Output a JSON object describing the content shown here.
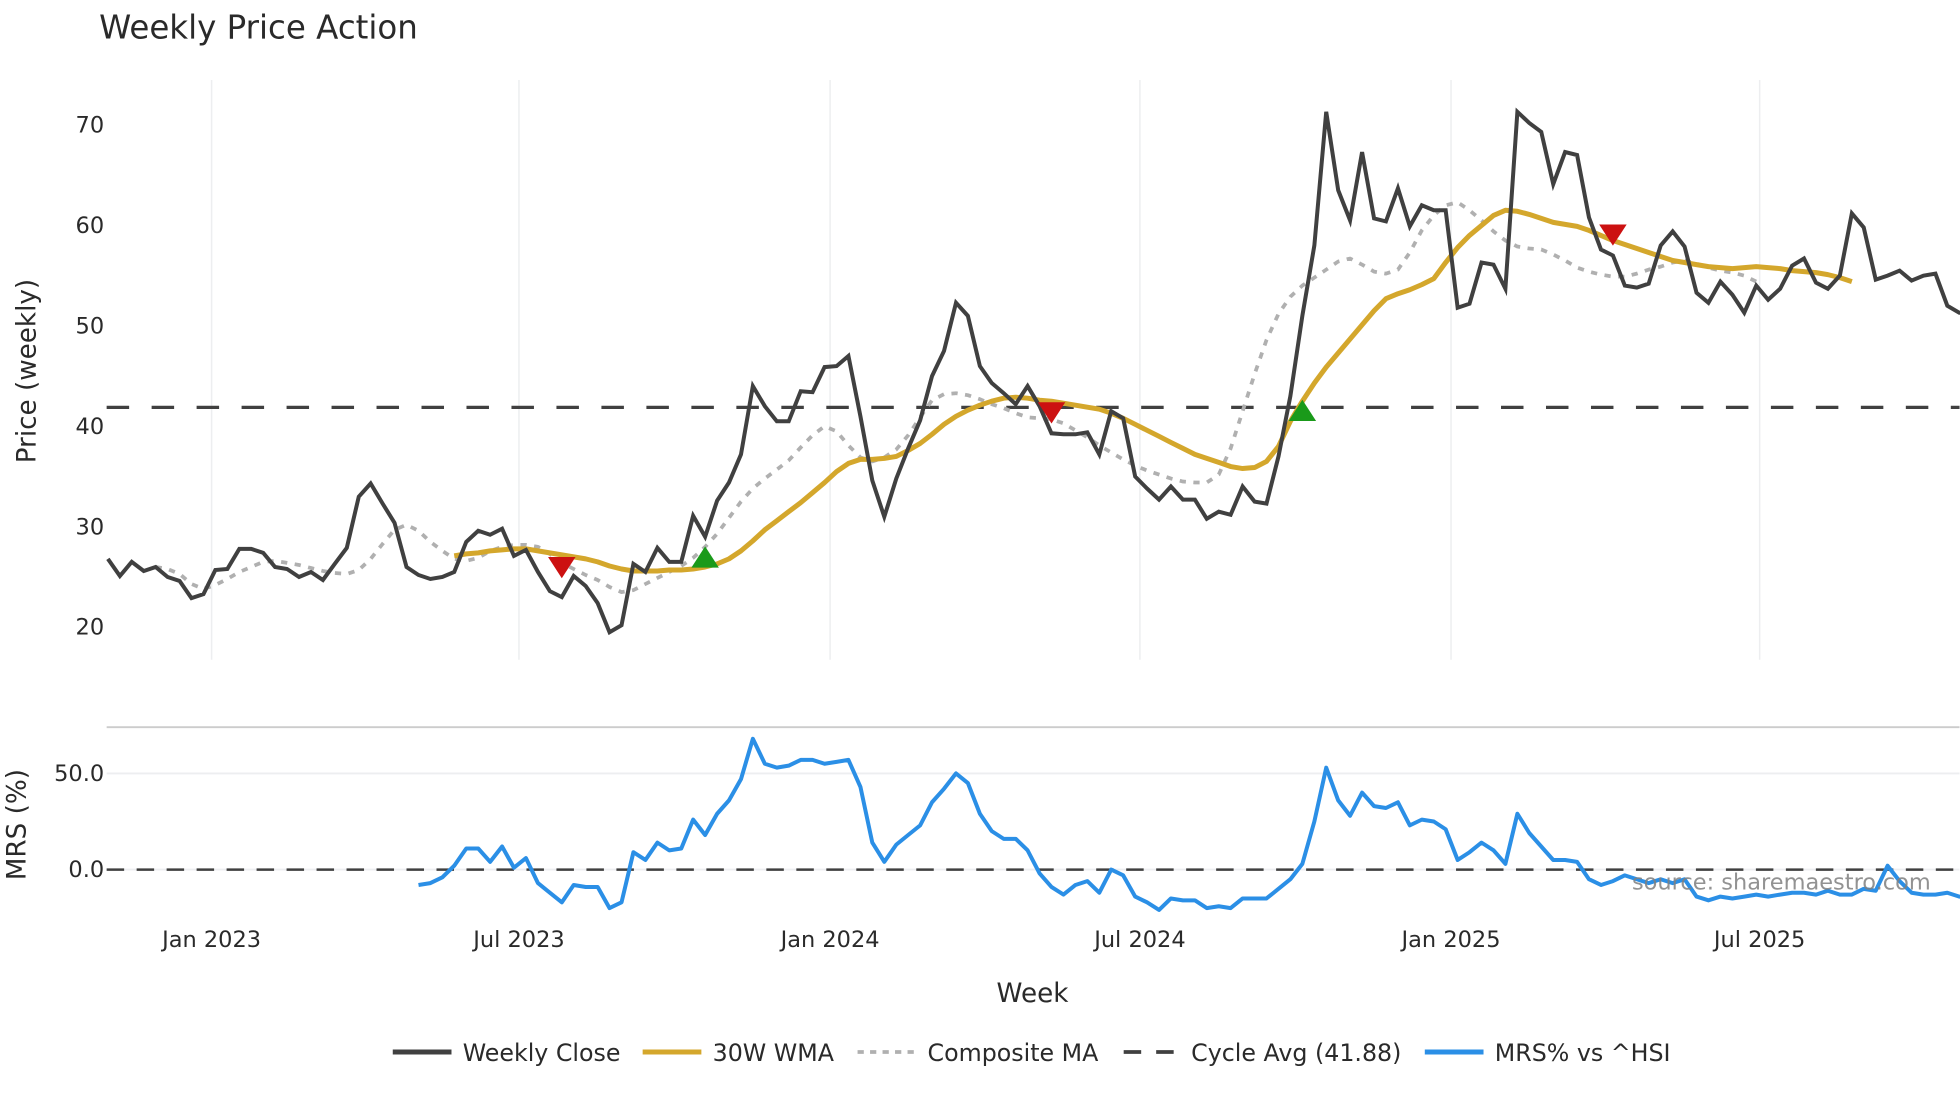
{
  "title": "Weekly Price Action",
  "source_label": "source: sharemaestro.com",
  "axes": {
    "price_ylabel": "Price (weekly)",
    "mrs_ylabel": "MRS (%)",
    "xlabel": "Week",
    "price_ticks": [
      "20",
      "30",
      "40",
      "50",
      "60",
      "70"
    ],
    "mrs_ticks": [
      "0.0",
      "50.0"
    ],
    "x_ticks": [
      "Jan 2023",
      "Jul 2023",
      "Jan 2024",
      "Jul 2024",
      "Jan 2025",
      "Jul 2025"
    ]
  },
  "legend": [
    {
      "label": "Weekly Close",
      "color": "#404040",
      "style": "solid"
    },
    {
      "label": "30W WMA",
      "color": "#D4A72C",
      "style": "solid"
    },
    {
      "label": "Composite MA",
      "color": "#B0B0B0",
      "style": "dotted"
    },
    {
      "label": "Cycle Avg (41.88)",
      "color": "#404040",
      "style": "dashed"
    },
    {
      "label": "MRS% vs ^HSI",
      "color": "#2B8FE6",
      "style": "solid"
    }
  ],
  "colors": {
    "close": "#404040",
    "wma": "#D4A72C",
    "composite": "#B0B0B0",
    "cycle": "#404040",
    "mrs": "#2B8FE6",
    "buy": "#1A9A1A",
    "sell": "#CC1111",
    "grid": "#EDEEF0"
  },
  "chart_data": [
    {
      "type": "line",
      "title": "Weekly Price Action",
      "xlabel": "Week",
      "ylabel": "Price (weekly)",
      "ylim": [
        17,
        74
      ],
      "x_tick_labels": [
        "Jan 2023",
        "Jul 2023",
        "Jan 2024",
        "Jul 2024",
        "Jan 2025",
        "Jul 2025"
      ],
      "grid": "vertical",
      "legend_position": "bottom",
      "hline": {
        "name": "Cycle Avg (41.88)",
        "value": 41.88
      },
      "series": [
        {
          "name": "Weekly Close",
          "start_week": 0,
          "values": [
            26.8,
            25.1,
            26.5,
            25.6,
            26.0,
            25.0,
            24.6,
            22.9,
            23.3,
            25.7,
            25.8,
            27.8,
            27.8,
            27.4,
            26.0,
            25.8,
            25.0,
            25.5,
            24.7,
            26.3,
            27.9,
            33.0,
            34.3,
            32.3,
            30.4,
            26.0,
            25.2,
            24.8,
            25.0,
            25.5,
            28.5,
            29.6,
            29.2,
            29.8,
            27.1,
            27.7,
            25.5,
            23.6,
            23.0,
            25.1,
            24.1,
            22.4,
            19.5,
            20.2,
            26.3,
            25.5,
            27.9,
            26.5,
            26.5,
            31.1,
            29.0,
            32.6,
            34.4,
            37.2,
            44.0,
            42.0,
            40.5,
            40.5,
            43.5,
            43.4,
            45.9,
            46.0,
            47.0,
            41.0,
            34.6,
            31.0,
            34.8,
            37.8,
            40.6,
            45.0,
            47.5,
            52.3,
            51.0,
            46.0,
            44.3,
            43.3,
            42.2,
            44.0,
            42.0,
            39.3,
            39.2,
            39.2,
            39.4,
            37.2,
            41.5,
            40.8,
            35.0,
            33.8,
            32.7,
            34.0,
            32.7,
            32.7,
            30.8,
            31.5,
            31.2,
            34.0,
            32.5,
            32.3,
            37.0,
            43.0,
            51.0,
            58.0,
            71.3,
            63.5,
            60.5,
            67.3,
            60.7,
            60.4,
            63.7,
            59.9,
            62.0,
            61.5,
            61.5,
            51.8,
            52.2,
            56.3,
            56.1,
            53.7,
            71.3,
            70.2,
            69.3,
            64.1,
            67.3,
            67.0,
            60.8,
            57.6,
            57.0,
            54.0,
            53.8,
            54.2,
            58.0,
            59.4,
            57.9,
            53.3,
            52.3,
            54.4,
            53.1,
            51.3,
            54.0,
            52.6,
            53.7,
            56.0,
            56.7,
            54.3,
            53.7,
            55.0,
            61.2,
            59.8,
            54.6,
            55.0,
            55.5,
            54.5,
            55.0,
            55.2,
            52.0,
            51.3,
            51.3
          ]
        },
        {
          "name": "30W WMA",
          "start_week": 29,
          "values": [
            27.1,
            27.3,
            27.4,
            27.6,
            27.7,
            27.8,
            27.8,
            27.6,
            27.4,
            27.2,
            27.0,
            26.8,
            26.5,
            26.1,
            25.8,
            25.6,
            25.6,
            25.6,
            25.7,
            25.7,
            25.8,
            26.0,
            26.3,
            26.8,
            27.6,
            28.6,
            29.7,
            30.6,
            31.5,
            32.4,
            33.4,
            34.4,
            35.5,
            36.3,
            36.7,
            36.7,
            36.8,
            37.0,
            37.6,
            38.3,
            39.2,
            40.2,
            41.0,
            41.6,
            42.1,
            42.5,
            42.8,
            42.9,
            42.8,
            42.6,
            42.5,
            42.3,
            42.1,
            41.9,
            41.7,
            41.3,
            40.8,
            40.2,
            39.6,
            39.0,
            38.4,
            37.8,
            37.2,
            36.8,
            36.4,
            36.0,
            35.8,
            35.9,
            36.5,
            38.0,
            40.5,
            42.5,
            44.3,
            45.9,
            47.3,
            48.7,
            50.1,
            51.5,
            52.7,
            53.2,
            53.6,
            54.1,
            54.7,
            56.3,
            57.8,
            59.0,
            60.0,
            61.0,
            61.5,
            61.4,
            61.1,
            60.7,
            60.3,
            60.1,
            59.9,
            59.5,
            59.0,
            58.5,
            58.1,
            57.7,
            57.3,
            56.9,
            56.5,
            56.3,
            56.1,
            55.9,
            55.8,
            55.7,
            55.8,
            55.9,
            55.8,
            55.7,
            55.5,
            55.4,
            55.3,
            55.1,
            54.8,
            54.4
          ]
        },
        {
          "name": "Composite MA",
          "start_week": 4,
          "values": [
            26.0,
            25.8,
            25.3,
            24.3,
            23.8,
            24.2,
            24.8,
            25.5,
            26.0,
            26.5,
            26.6,
            26.4,
            26.2,
            25.9,
            25.6,
            25.4,
            25.3,
            25.7,
            26.8,
            28.3,
            29.7,
            30.2,
            29.6,
            28.5,
            27.6,
            26.8,
            26.6,
            26.9,
            27.6,
            28.0,
            28.2,
            28.2,
            28.0,
            27.3,
            26.4,
            25.8,
            25.2,
            24.7,
            24.0,
            23.5,
            23.7,
            24.3,
            24.9,
            25.5,
            26.1,
            26.9,
            28.0,
            29.3,
            30.9,
            32.5,
            33.8,
            34.8,
            35.7,
            36.6,
            37.9,
            39.1,
            40.0,
            39.5,
            38.1,
            36.9,
            36.5,
            36.9,
            37.7,
            39.1,
            40.9,
            42.6,
            43.2,
            43.3,
            43.1,
            42.7,
            42.2,
            41.8,
            41.3,
            40.9,
            40.8,
            40.7,
            40.3,
            39.6,
            38.9,
            38.1,
            37.4,
            36.7,
            36.1,
            35.6,
            35.2,
            34.8,
            34.5,
            34.4,
            34.4,
            35.2,
            37.8,
            41.5,
            45.2,
            48.6,
            51.2,
            52.9,
            54.0,
            54.8,
            55.6,
            56.4,
            56.7,
            56.1,
            55.4,
            55.2,
            55.6,
            57.3,
            59.5,
            61.0,
            62.0,
            62.3,
            61.5,
            60.5,
            59.4,
            58.5,
            57.9,
            57.7,
            57.6,
            57.1,
            56.5,
            55.8,
            55.4,
            55.1,
            54.9,
            54.9,
            55.2,
            55.6,
            55.9,
            56.3,
            56.5,
            56.2,
            55.8,
            55.5,
            55.3,
            55.0,
            54.4
          ]
        }
      ],
      "markers": [
        {
          "type": "sell",
          "week": 38,
          "value": 26.0
        },
        {
          "type": "buy",
          "week": 50,
          "value": 26.8
        },
        {
          "type": "sell",
          "week": 79,
          "value": 41.4
        },
        {
          "type": "buy",
          "week": 100,
          "value": 41.4
        },
        {
          "type": "sell",
          "week": 126,
          "value": 59.1
        }
      ]
    },
    {
      "type": "line",
      "title": "",
      "xlabel": "Week",
      "ylabel": "MRS (%)",
      "ylim": [
        -30,
        68
      ],
      "hline": {
        "name": "zero",
        "value": 0
      },
      "series": [
        {
          "name": "MRS% vs ^HSI",
          "start_week": 26,
          "values": [
            -8,
            -7,
            -4,
            2,
            11,
            11,
            4,
            12,
            1,
            6,
            -7,
            -12,
            -17,
            -8,
            -9,
            -9,
            -20,
            -17,
            9,
            5,
            14,
            10,
            11,
            26,
            18,
            29,
            36,
            47,
            68,
            55,
            53,
            54,
            57,
            57,
            55,
            56,
            57,
            43,
            14,
            4,
            13,
            18,
            23,
            35,
            42,
            50,
            45,
            29,
            20,
            16,
            16,
            10,
            -2,
            -9,
            -13,
            -8,
            -6,
            -12,
            0,
            -3,
            -14,
            -17,
            -21,
            -15,
            -16,
            -16,
            -20,
            -19,
            -20,
            -15,
            -15,
            -15,
            -10,
            -5,
            3,
            25,
            53,
            36,
            28,
            40,
            33,
            32,
            35,
            23,
            26,
            25,
            21,
            5,
            9,
            14,
            10,
            3,
            29,
            19,
            12,
            5,
            5,
            4,
            -5,
            -8,
            -6,
            -3,
            -5,
            -7,
            -5,
            -7,
            -5,
            -14,
            -16,
            -14,
            -15,
            -14,
            -13,
            -14,
            -13,
            -12,
            -12,
            -13,
            -11,
            -13,
            -13,
            -10,
            -11,
            2,
            -6,
            -12,
            -13,
            -13,
            -12,
            -14,
            -14,
            -13,
            -15,
            -13,
            -14,
            -17,
            -17
          ]
        }
      ]
    }
  ]
}
